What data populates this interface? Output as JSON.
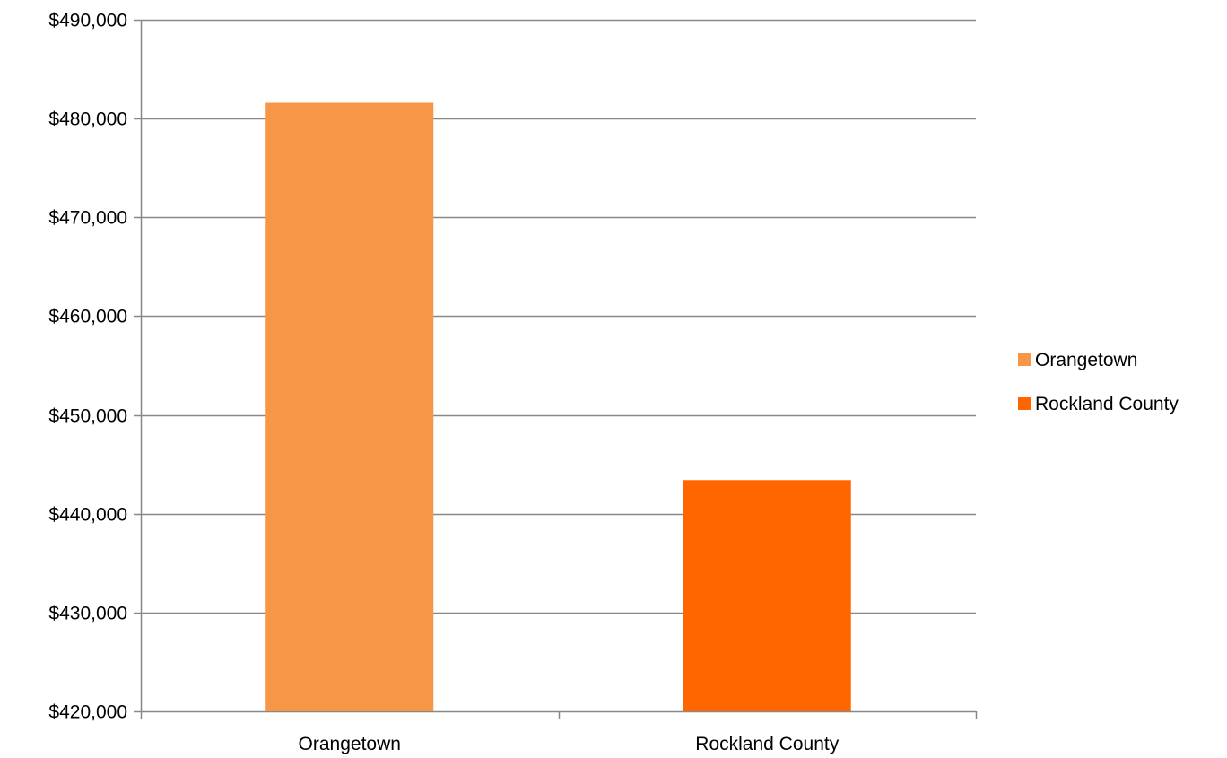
{
  "chart_data": {
    "type": "bar",
    "categories": [
      "Orangetown",
      "Rockland County"
    ],
    "series": [
      {
        "name": "Orangetown",
        "values": [
          481600,
          null
        ],
        "color": "#F79646"
      },
      {
        "name": "Rockland County",
        "values": [
          null,
          443400
        ],
        "color": "#FF6600"
      }
    ],
    "ylim": [
      420000,
      490000
    ],
    "y_tick_values": [
      420000,
      430000,
      440000,
      450000,
      460000,
      470000,
      480000,
      490000
    ],
    "y_tick_labels": [
      "$420,000",
      "$430,000",
      "$440,000",
      "$450,000",
      "$460,000",
      "$470,000",
      "$480,000",
      "$490,000"
    ],
    "grid": true,
    "legend_position": "right",
    "title": "",
    "xlabel": "",
    "ylabel": ""
  }
}
